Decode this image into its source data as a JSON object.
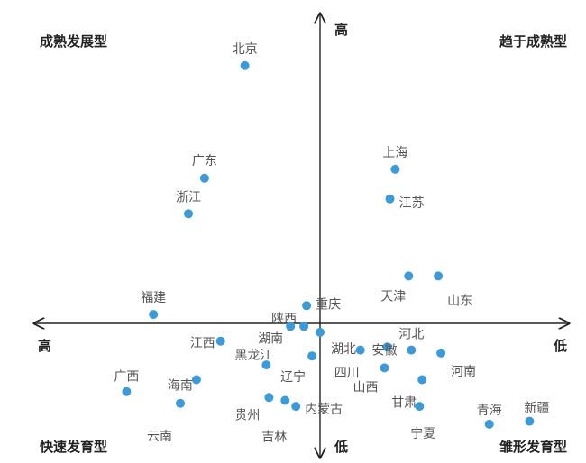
{
  "chart_data": {
    "type": "scatter",
    "title": "",
    "xlabel": "",
    "ylabel": "",
    "axes": {
      "x_left_label": "高",
      "x_right_label": "低",
      "y_top_label": "高",
      "y_bottom_label": "低"
    },
    "xlim": [
      -1,
      1
    ],
    "ylim": [
      -1,
      1
    ],
    "grid": false,
    "quadrants": {
      "top_left": "成熟发展型",
      "top_right": "趋于成熟型",
      "bottom_left": "快速发育型",
      "bottom_right": "雏形发育型"
    },
    "points": [
      {
        "name": "北京",
        "x": -0.28,
        "y": 0.87
      },
      {
        "name": "广东",
        "x": -0.43,
        "y": 0.49
      },
      {
        "name": "浙江",
        "x": -0.49,
        "y": 0.37
      },
      {
        "name": "上海",
        "x": 0.28,
        "y": 0.52
      },
      {
        "name": "江苏",
        "x": 0.26,
        "y": 0.42
      },
      {
        "name": "天津",
        "x": 0.33,
        "y": 0.16
      },
      {
        "name": "山东",
        "x": 0.44,
        "y": 0.16
      },
      {
        "name": "福建",
        "x": -0.62,
        "y": 0.03
      },
      {
        "name": "重庆",
        "x": -0.05,
        "y": 0.06
      },
      {
        "name": "陕西",
        "x": -0.06,
        "y": -0.01
      },
      {
        "name": "湖南",
        "x": -0.11,
        "y": -0.01
      },
      {
        "name": "湖北",
        "x": 0.0,
        "y": -0.03
      },
      {
        "name": "江西",
        "x": -0.37,
        "y": -0.06
      },
      {
        "name": "黑龙江",
        "x": -0.2,
        "y": -0.14
      },
      {
        "name": "辽宁",
        "x": -0.03,
        "y": -0.11
      },
      {
        "name": "四川",
        "x": 0.15,
        "y": -0.09
      },
      {
        "name": "安徽",
        "x": 0.25,
        "y": -0.08
      },
      {
        "name": "河北",
        "x": 0.34,
        "y": -0.09
      },
      {
        "name": "河南",
        "x": 0.45,
        "y": -0.1
      },
      {
        "name": "山西",
        "x": 0.24,
        "y": -0.15
      },
      {
        "name": "甘肃",
        "x": 0.38,
        "y": -0.19
      },
      {
        "name": "宁夏",
        "x": 0.37,
        "y": -0.28
      },
      {
        "name": "广西",
        "x": -0.72,
        "y": -0.23
      },
      {
        "name": "海南",
        "x": -0.46,
        "y": -0.19
      },
      {
        "name": "云南",
        "x": -0.52,
        "y": -0.27
      },
      {
        "name": "贵州",
        "x": -0.19,
        "y": -0.25
      },
      {
        "name": "吉林",
        "x": -0.13,
        "y": -0.26
      },
      {
        "name": "内蒙古",
        "x": -0.09,
        "y": -0.28
      },
      {
        "name": "青海",
        "x": 0.63,
        "y": -0.34
      },
      {
        "name": "新疆",
        "x": 0.78,
        "y": -0.33
      }
    ]
  }
}
